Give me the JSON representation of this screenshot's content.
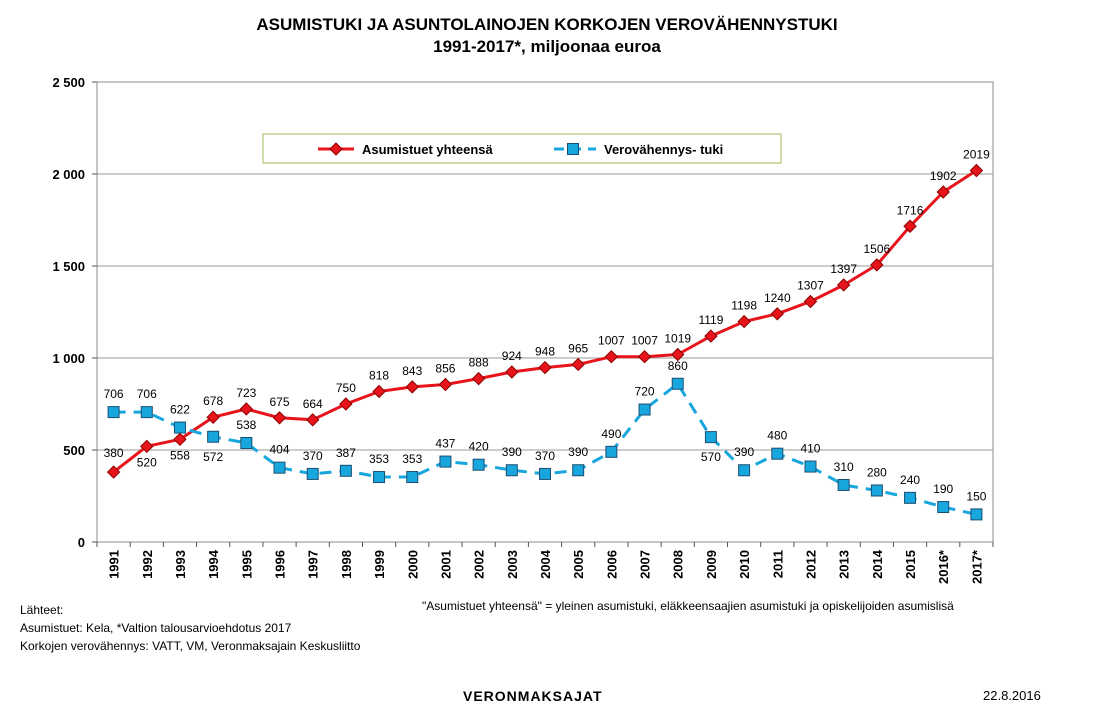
{
  "title_line1": "ASUMISTUKI JA ASUNTOLAINOJEN KORKOJEN VEROVÄHENNYSTUKI",
  "title_line2": "1991-2017*, miljoonaa euroa",
  "chart_data": {
    "type": "line",
    "title": "ASUMISTUKI JA ASUNTOLAINOJEN KORKOJEN VEROVÄHENNYSTUKI 1991-2017*, miljoonaa euroa",
    "categories": [
      "1991",
      "1992",
      "1993",
      "1994",
      "1995",
      "1996",
      "1997",
      "1998",
      "1999",
      "2000",
      "2001",
      "2002",
      "2003",
      "2004",
      "2005",
      "2006",
      "2007",
      "2008",
      "2009",
      "2010",
      "2011",
      "2012",
      "2013",
      "2014",
      "2015",
      "2016*",
      "2017*"
    ],
    "series": [
      {
        "name": "Asumistuet yhteensä",
        "color": "#e8141b",
        "style": "solid",
        "marker": "diamond",
        "values": [
          380,
          520,
          558,
          678,
          723,
          675,
          664,
          750,
          818,
          843,
          856,
          888,
          924,
          948,
          965,
          1007,
          1007,
          1019,
          1119,
          1198,
          1240,
          1307,
          1397,
          1506,
          1716,
          1902,
          2019
        ]
      },
      {
        "name": "Verovähennys- tuki",
        "color": "#17a6dd",
        "style": "dashed",
        "marker": "square",
        "values": [
          706,
          706,
          622,
          572,
          538,
          404,
          370,
          387,
          353,
          353,
          437,
          420,
          390,
          370,
          390,
          490,
          720,
          860,
          570,
          390,
          480,
          410,
          310,
          280,
          240,
          190,
          150
        ]
      }
    ],
    "ylim": [
      0,
      2500
    ],
    "yticks": [
      0,
      500,
      1000,
      1500,
      2000,
      2500
    ],
    "ytick_labels": [
      "0",
      "500",
      "1 000",
      "1 500",
      "2 000",
      "2 500"
    ],
    "grid": true,
    "legend": "top-center"
  },
  "footer": {
    "sources_heading": "Lähteet:",
    "source_1": "Asumistuet: Kela, *Valtion talousarvioehdotus 2017",
    "source_2": "Korkojen verovähennys: VATT, VM, Veronmaksajain Keskusliitto",
    "note": "\"Asumistuet yhteensä\" = yleinen asumistuki, eläkkeensaajien asumistuki ja opiskelijoiden asumislisä",
    "brand": "VERONMAKSAJAT",
    "date": "22.8.2016"
  }
}
